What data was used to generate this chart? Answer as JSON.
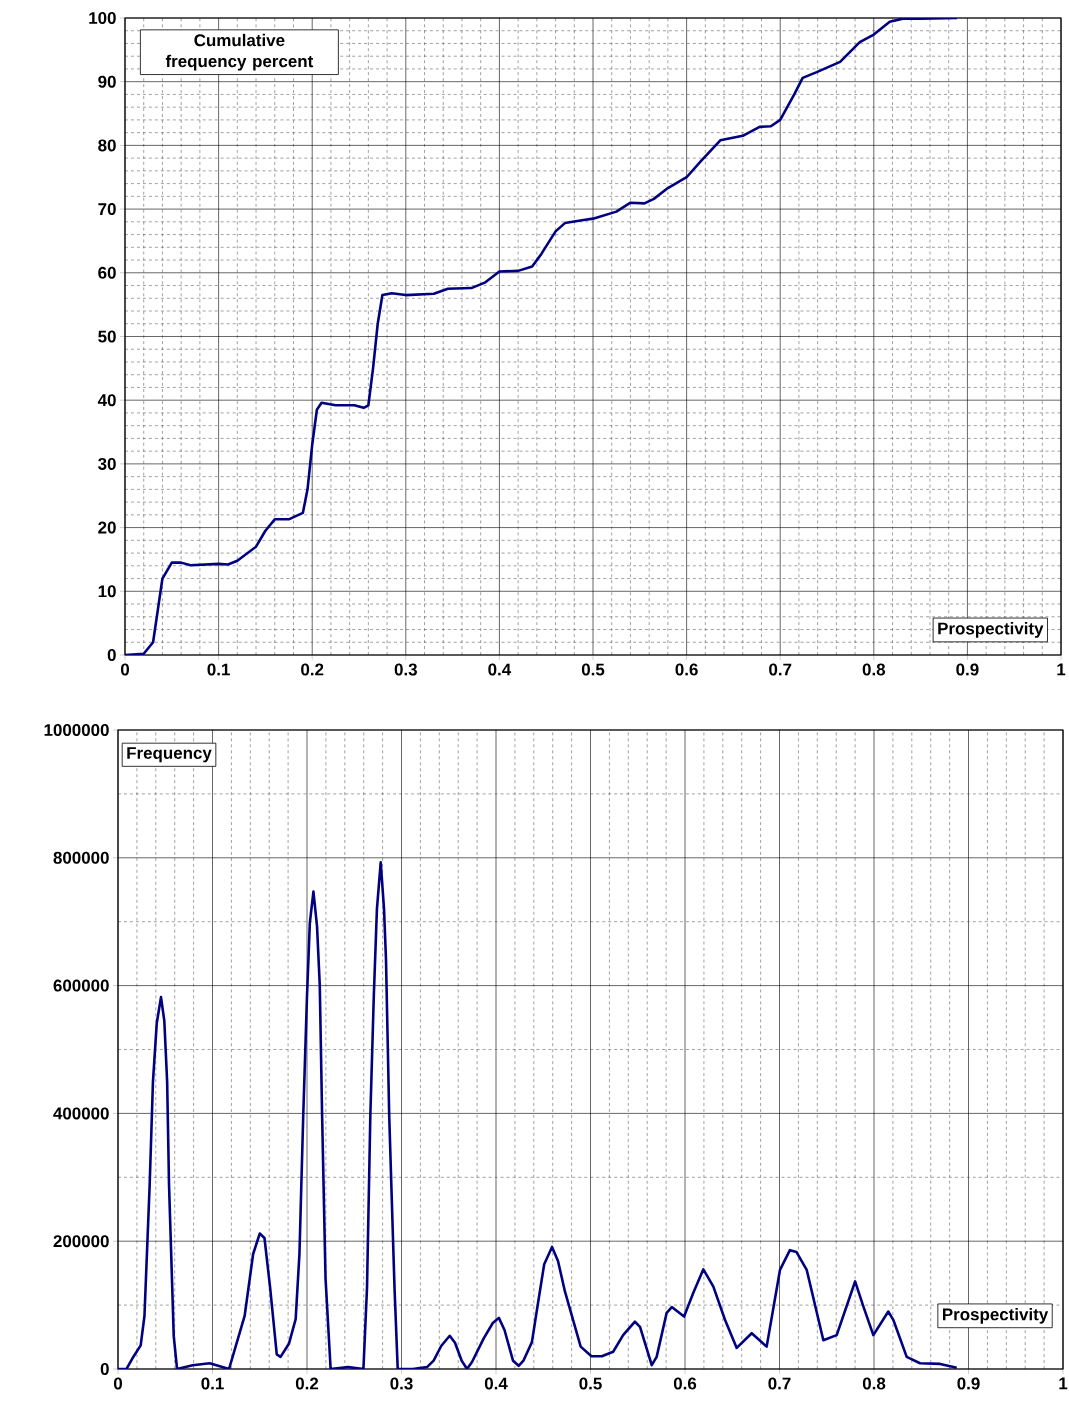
{
  "chart_data": [
    {
      "type": "line",
      "xlabel": "Prospectivity",
      "ylabel": "Cumulative frequency percent",
      "color": "#000080",
      "grid": true,
      "xlim": [
        0,
        1
      ],
      "ylim": [
        0,
        100
      ],
      "xticks": [
        0,
        0.1,
        0.2,
        0.3,
        0.4,
        0.5,
        0.6,
        0.7,
        0.8,
        0.9,
        1
      ],
      "yticks": [
        0,
        10,
        20,
        30,
        40,
        50,
        60,
        70,
        80,
        90,
        100
      ],
      "x": [
        0,
        0.02,
        0.03,
        0.035,
        0.04,
        0.05,
        0.06,
        0.07,
        0.1,
        0.11,
        0.12,
        0.14,
        0.15,
        0.16,
        0.175,
        0.19,
        0.195,
        0.2,
        0.205,
        0.21,
        0.225,
        0.245,
        0.255,
        0.26,
        0.265,
        0.27,
        0.275,
        0.285,
        0.3,
        0.33,
        0.345,
        0.37,
        0.385,
        0.4,
        0.42,
        0.435,
        0.445,
        0.46,
        0.47,
        0.49,
        0.5,
        0.525,
        0.54,
        0.555,
        0.565,
        0.58,
        0.6,
        0.615,
        0.636,
        0.66,
        0.678,
        0.69,
        0.7,
        0.715,
        0.724,
        0.739,
        0.764,
        0.785,
        0.8,
        0.817,
        0.831,
        0.85,
        0.889
      ],
      "values": [
        0,
        0.2,
        2,
        7,
        12,
        14.5,
        14.5,
        14.1,
        14.3,
        14.2,
        14.8,
        17,
        19.5,
        21.3,
        21.3,
        22.3,
        26,
        33,
        38.5,
        39.6,
        39.2,
        39.2,
        38.8,
        39.2,
        45,
        52,
        56.5,
        56.8,
        56.5,
        56.7,
        57.5,
        57.6,
        58.5,
        60.2,
        60.3,
        61,
        63,
        66.5,
        67.8,
        68.3,
        68.5,
        69.6,
        71,
        70.9,
        71.6,
        73.3,
        75,
        77.5,
        80.8,
        81.5,
        82.9,
        83,
        84,
        88,
        90.6,
        91.5,
        93.1,
        96.2,
        97.4,
        99.4,
        99.9,
        99.9,
        100
      ]
    },
    {
      "type": "line",
      "xlabel": "Prospectivity",
      "ylabel": "Frequency",
      "color": "#000080",
      "grid": true,
      "xlim": [
        0,
        1
      ],
      "ylim": [
        0,
        1000000
      ],
      "xticks": [
        0,
        0.1,
        0.2,
        0.3,
        0.4,
        0.5,
        0.6,
        0.7,
        0.8,
        0.9,
        1
      ],
      "yticks": [
        0,
        200000,
        400000,
        600000,
        800000,
        1000000
      ],
      "x": [
        0,
        0.009,
        0.015,
        0.024,
        0.028,
        0.0335,
        0.037,
        0.041,
        0.0455,
        0.049,
        0.052,
        0.054,
        0.059,
        0.0625,
        0.079,
        0.097,
        0.1175,
        0.134,
        0.143,
        0.15,
        0.155,
        0.161,
        0.168,
        0.172,
        0.181,
        0.188,
        0.192,
        0.196,
        0.2,
        0.203,
        0.2068,
        0.2106,
        0.2135,
        0.216,
        0.2196,
        0.225,
        0.2435,
        0.2597,
        0.2635,
        0.267,
        0.2707,
        0.274,
        0.278,
        0.2815,
        0.2836,
        0.287,
        0.2926,
        0.296,
        0.312,
        0.327,
        0.334,
        0.342,
        0.351,
        0.3566,
        0.3637,
        0.3693,
        0.3746,
        0.387,
        0.3966,
        0.403,
        0.409,
        0.418,
        0.424,
        0.429,
        0.438,
        0.444,
        0.451,
        0.4593,
        0.4656,
        0.473,
        0.4896,
        0.501,
        0.512,
        0.524,
        0.5345,
        0.547,
        0.5524,
        0.5648,
        0.57,
        0.5806,
        0.586,
        0.599,
        0.6087,
        0.6194,
        0.63,
        0.6423,
        0.6547,
        0.6706,
        0.6864,
        0.7005,
        0.711,
        0.718,
        0.7288,
        0.7464,
        0.7605,
        0.78,
        0.7887,
        0.7993,
        0.8151,
        0.8204,
        0.8346,
        0.8487,
        0.87,
        0.8875
      ],
      "values": [
        0,
        0,
        16000,
        37000,
        83000,
        288000,
        450000,
        541000,
        582000,
        545000,
        450000,
        288000,
        51000,
        0,
        6000,
        9000,
        0,
        83000,
        180000,
        212000,
        205000,
        127000,
        23000,
        19000,
        40000,
        78000,
        180000,
        396000,
        584000,
        698000,
        747000,
        693000,
        601000,
        396000,
        142000,
        0,
        3000,
        0,
        127000,
        396000,
        584000,
        720000,
        793000,
        720000,
        640000,
        396000,
        127000,
        0,
        0,
        3000,
        13000,
        36000,
        52000,
        41000,
        13000,
        0,
        11000,
        48000,
        72000,
        80000,
        61000,
        13000,
        5000,
        13000,
        42000,
        99000,
        164000,
        191000,
        169000,
        121000,
        35000,
        20000,
        20000,
        27000,
        53000,
        74000,
        66000,
        6000,
        19000,
        88000,
        97000,
        82000,
        119000,
        156000,
        129000,
        77000,
        33000,
        56000,
        35000,
        155000,
        186000,
        183000,
        155000,
        45000,
        53000,
        137000,
        98000,
        53000,
        90000,
        77000,
        19000,
        9000,
        8000,
        2000
      ]
    }
  ]
}
